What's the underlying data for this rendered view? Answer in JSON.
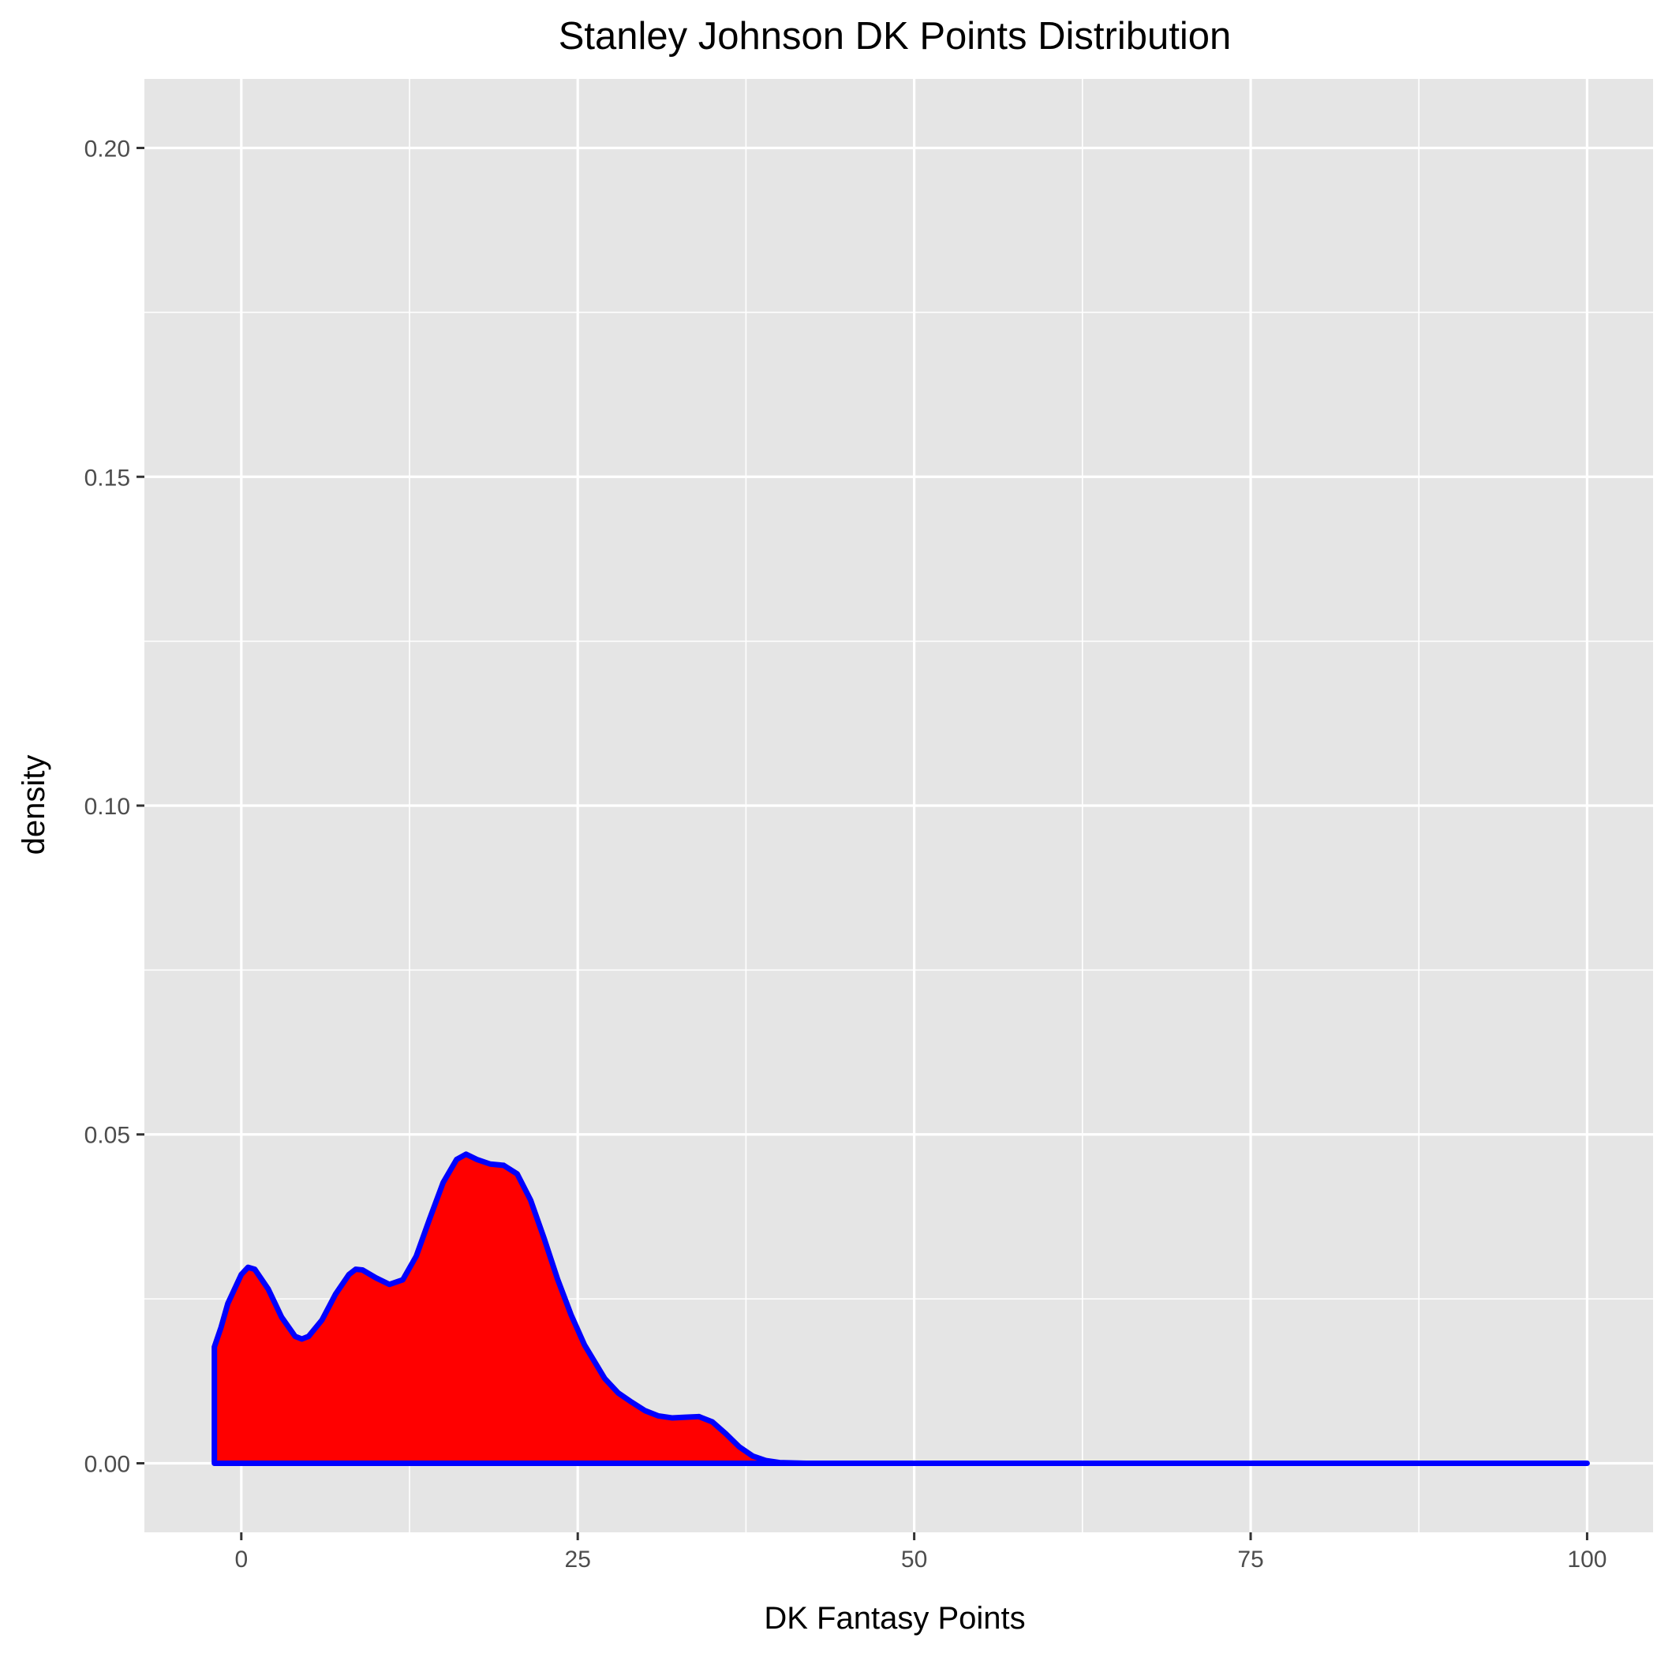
{
  "chart_data": {
    "type": "area",
    "title": "Stanley Johnson DK Points Distribution",
    "xlabel": "DK Fantasy Points",
    "ylabel": "density",
    "xlim": [
      -7.2,
      104.9
    ],
    "ylim": [
      -0.0105,
      0.2105
    ],
    "x_ticks": [
      0,
      25,
      50,
      75,
      100
    ],
    "x_tick_labels": [
      "0",
      "25",
      "50",
      "75",
      "100"
    ],
    "y_ticks": [
      0.0,
      0.05,
      0.1,
      0.15,
      0.2
    ],
    "y_tick_labels": [
      "0.00",
      "0.05",
      "0.10",
      "0.15",
      "0.20"
    ],
    "grid": true,
    "legend": "none",
    "colors": {
      "panel": "#e5e5e5",
      "grid": "#ffffff",
      "fill": "#ff0000",
      "line": "#0000ff"
    },
    "series": [
      {
        "x": [
          -2,
          -1.5,
          -1,
          0,
          0.5,
          1,
          2,
          3,
          4,
          4.5,
          5,
          6,
          7,
          8,
          8.5,
          9,
          10,
          11,
          12,
          13,
          14,
          15,
          16,
          16.7,
          17.5,
          18.5,
          19.5,
          20.5,
          21.5,
          22.5,
          23.5,
          24.5,
          25.5,
          27,
          28,
          29,
          30,
          31,
          32,
          33,
          34,
          35,
          36,
          37,
          38,
          39,
          40,
          42,
          45,
          50,
          60,
          75,
          100
        ],
        "y": [
          0.0177,
          0.0207,
          0.0243,
          0.0287,
          0.0298,
          0.0295,
          0.0265,
          0.0222,
          0.0193,
          0.0189,
          0.0193,
          0.0218,
          0.0257,
          0.0287,
          0.0295,
          0.0294,
          0.0282,
          0.0272,
          0.0279,
          0.0315,
          0.0372,
          0.0427,
          0.0462,
          0.047,
          0.0462,
          0.0455,
          0.0453,
          0.044,
          0.04,
          0.0342,
          0.028,
          0.0226,
          0.018,
          0.0129,
          0.0107,
          0.0093,
          0.008,
          0.0072,
          0.0069,
          0.007,
          0.0071,
          0.0063,
          0.0045,
          0.0025,
          0.0011,
          0.0004,
          0.0001,
          0.0,
          0.0,
          0.0,
          0.0,
          0.0,
          0.0
        ]
      }
    ]
  }
}
